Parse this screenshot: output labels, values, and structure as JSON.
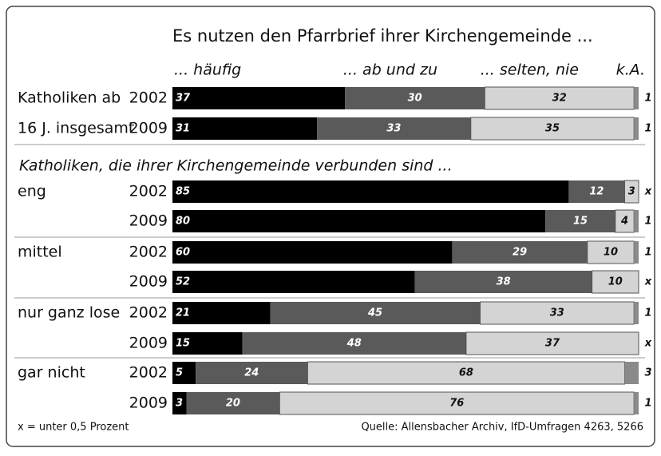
{
  "chart_data": {
    "type": "stacked_bar_h",
    "title": "Es nutzen den Pfarrbrief ihrer Kirchengemeinde ...",
    "categories": [
      "2002",
      "2009",
      "2002",
      "2009",
      "2002",
      "2009",
      "2002",
      "2009",
      "2002",
      "2009"
    ],
    "row_labels": [
      "Katholiken ab",
      "16 J. insgesamt",
      "eng",
      null,
      "mittel",
      null,
      "nur ganz lose",
      null,
      "gar nicht",
      null
    ],
    "group_heading": "Katholiken, die ihrer Kirchengemeinde verbunden sind ...",
    "xlim": [
      0,
      100
    ],
    "series": [
      {
        "name": "... häufig",
        "color": "#000000",
        "values": [
          37,
          31,
          85,
          80,
          60,
          52,
          21,
          15,
          5,
          3
        ]
      },
      {
        "name": "... ab und zu",
        "color": "#5a5a5a",
        "values": [
          30,
          33,
          12,
          15,
          29,
          38,
          45,
          48,
          24,
          20
        ]
      },
      {
        "name": "... selten, nie",
        "color": "#d4d4d4",
        "values": [
          32,
          35,
          3,
          4,
          10,
          10,
          33,
          37,
          68,
          76
        ]
      },
      {
        "name": "k.A.",
        "color": "#8a8a8a",
        "values": [
          1,
          1,
          0,
          1,
          1,
          0,
          1,
          0,
          3,
          1
        ],
        "value_labels": [
          "1",
          "1",
          "x",
          "1",
          "1",
          "x",
          "1",
          "x",
          "3",
          "1"
        ]
      }
    ],
    "note": "x = unter 0,5 Prozent",
    "source": "Quelle: Allensbacher Archiv, IfD-Umfragen 4263, 5266"
  }
}
